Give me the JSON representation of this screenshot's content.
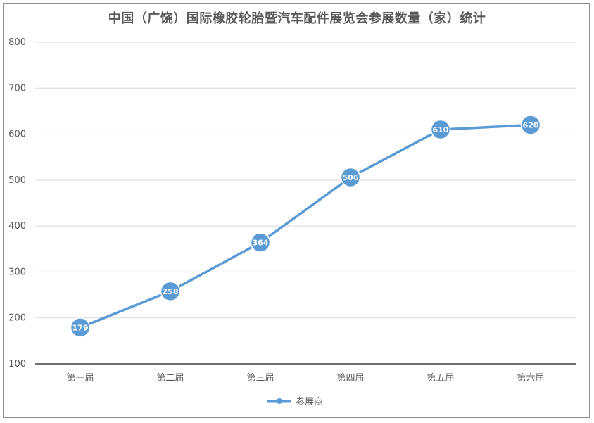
{
  "chart_data": {
    "type": "line",
    "title": "中国（广饶）国际橡胶轮胎暨汽车配件展览会参展数量（家）统计",
    "xlabel": "",
    "ylabel": "",
    "categories": [
      "第一届",
      "第二届",
      "第三届",
      "第四届",
      "第五届",
      "第六届"
    ],
    "series": [
      {
        "name": "参展商",
        "values": [
          179,
          258,
          364,
          506,
          610,
          620
        ],
        "color": "#5b9bd5"
      }
    ],
    "ylim": [
      100,
      800
    ],
    "yticks": [
      100,
      200,
      300,
      400,
      500,
      600,
      700,
      800
    ],
    "grid": true,
    "legend": "bottom",
    "data_labels": true
  }
}
